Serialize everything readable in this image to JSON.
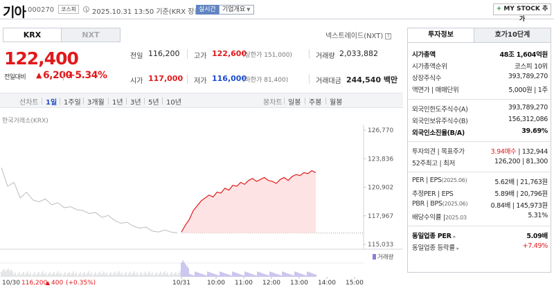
{
  "header": {
    "stock_name": "기아",
    "stock_code": "000270",
    "market": "코스피",
    "datetime": "2025.10.31 13:50  기준(KRX 장중)",
    "realtime": "실시간",
    "company_overview": "기업개요",
    "my_stock_button": "MY STOCK 추가"
  },
  "exchange_tabs": [
    "KRX",
    "NXT"
  ],
  "nextrade_label": "넥스트레이드(NXT)",
  "quote": {
    "price": "122,400",
    "prev_label": "전일대비",
    "change": "6,200",
    "change_pct": "+5.34%",
    "prev_close_label": "전일",
    "prev_close": "116,200",
    "high_label": "고가",
    "high": "122,600",
    "upper_limit": "(상한가 151,000)",
    "volume_label": "거래량",
    "volume": "2,033,882",
    "open_label": "시가",
    "open": "117,000",
    "low_label": "저가",
    "low": "116,000",
    "lower_limit": "(하한가 81,400)",
    "amount_label": "거래대금",
    "amount": "244,540 백만"
  },
  "periods": {
    "chart_label": "선차트",
    "items": [
      "1일",
      "1주일",
      "3개월",
      "1년",
      "3년",
      "5년",
      "10년"
    ],
    "selected": "1일",
    "candle_label": "봉차트",
    "candle_items": [
      "일봉",
      "주봉",
      "월봉"
    ]
  },
  "chart_data": {
    "type": "line",
    "source": "한국거래소(KRX)",
    "y_ticks": [
      "126,770",
      "123,836",
      "120,902",
      "117,967",
      "115,033"
    ],
    "ylim": [
      115033,
      126770
    ],
    "prev_close": 116200,
    "x_ticks": [
      "10/31",
      "10:00",
      "11:00",
      "12:00",
      "13:00",
      "14:00",
      "15:00"
    ],
    "previous_day": {
      "label": "10/30",
      "price": "116,200",
      "change": "400",
      "change_pct": "(+0.35%)",
      "values": [
        122900,
        121000,
        121400,
        119800,
        120400,
        119600,
        119400,
        119700,
        119100,
        119300,
        118800,
        118900,
        118600,
        118500,
        118200,
        118300,
        117800,
        118000,
        117500,
        117200,
        117300,
        116900,
        116700,
        116800,
        116400,
        116300,
        116500,
        116300,
        116200
      ]
    },
    "today": {
      "values": [
        116300,
        117000,
        117600,
        118500,
        119000,
        119500,
        119800,
        120100,
        119900,
        120400,
        120300,
        120800,
        120600,
        121100,
        121000,
        121400,
        121200,
        121600,
        121800,
        121500,
        121700,
        121900,
        121600,
        121500,
        121300,
        121700,
        121900,
        121600,
        122000,
        122200,
        122100,
        122400,
        122300,
        122600,
        122400
      ]
    },
    "volume_label": "거래량"
  },
  "invest_tabs": [
    "투자정보",
    "호가10단계"
  ],
  "invest": {
    "mcap_label": "시가총액",
    "mcap": "48조 1,604억원",
    "mcap_rank_label": "시가총액순위",
    "mcap_rank": "코스피 10위",
    "shares_label": "상장주식수",
    "shares": "393,789,270",
    "par_label": "액면가 | 매매단위",
    "par": "5,000원 | 1주",
    "foreign_limit_label": "외국인한도주식수(A)",
    "foreign_limit": "393,789,270",
    "foreign_hold_label": "외국인보유주식수(B)",
    "foreign_hold": "156,312,086",
    "foreign_ratio_label": "외국인소진율(B/A)",
    "foreign_ratio": "39.69%",
    "opinion_label": "투자의견 | 목표주가",
    "opinion": "3.94매수",
    "target": "132,944",
    "w52_label": "52주최고 | 최저",
    "w52": "126,200 | 81,300",
    "per_label": "PER | EPS",
    "per_sub": "(2025.06)",
    "per": "5.62배 | 21,763원",
    "est_per_label": "추정PER | EPS",
    "est_per": "5.89배 | 20,796원",
    "pbr_label": "PBR | BPS",
    "pbr_sub": "(2025.06)",
    "pbr": "0.84배 | 145,973원",
    "div_label": "배당수익률 |",
    "div_sub": "2025.03",
    "div": "5.31%",
    "ind_per_label": "동일업종 PER",
    "ind_per": "5.09배",
    "ind_rate_label": "동일업종 등락률",
    "ind_rate": "+7.49%"
  }
}
